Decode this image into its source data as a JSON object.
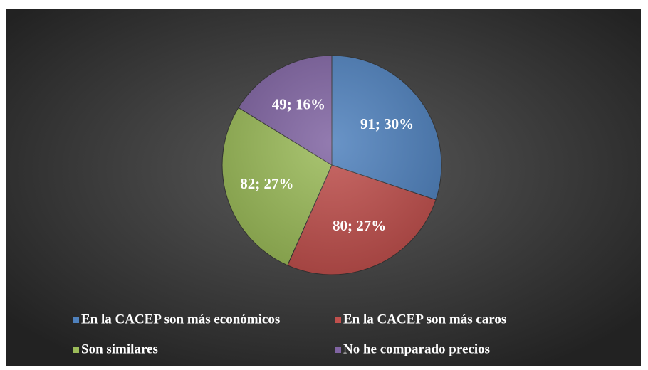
{
  "chart_data": {
    "type": "pie",
    "categories": [
      "En la CACEP son más económicos",
      "En la CACEP son más caros",
      "Son similares",
      "No he comparado precios"
    ],
    "values": [
      91,
      80,
      82,
      49
    ],
    "value_labels": [
      "91; 30%",
      "80; 27%",
      "82; 27%",
      "49; 16%"
    ],
    "colors": [
      "#4f81bd",
      "#c0504d",
      "#9bbb59",
      "#8064a2"
    ],
    "legend": "bottom"
  }
}
